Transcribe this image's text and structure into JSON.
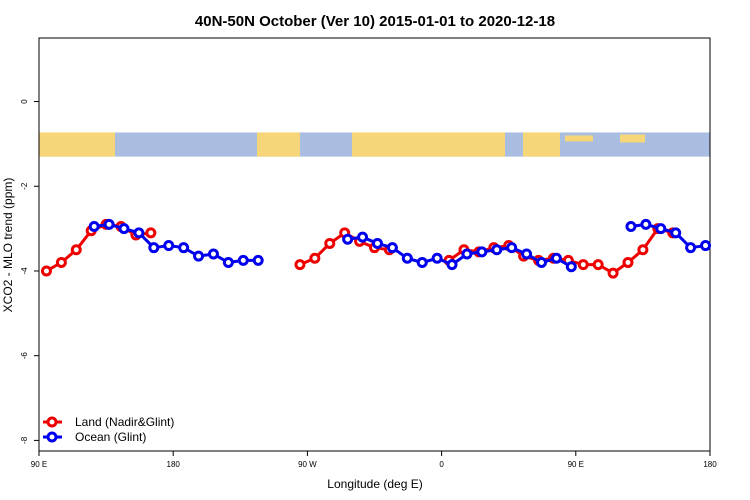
{
  "chart_data": {
    "type": "line",
    "title": "40N-50N October (Ver 10)   2015-01-01 to 2020-12-18",
    "xlabel": "Longitude (deg E)",
    "ylabel": "XCO2 - MLO trend (ppm)",
    "xlim": [
      90,
      540
    ],
    "ylim": [
      -8.25,
      1.5
    ],
    "x_ticks": [
      {
        "value": 90,
        "label": "90 E"
      },
      {
        "value": 180,
        "label": "180"
      },
      {
        "value": 270,
        "label": "90 W"
      },
      {
        "value": 360,
        "label": "0"
      },
      {
        "value": 450,
        "label": "90 E"
      },
      {
        "value": 540,
        "label": "180"
      }
    ],
    "y_ticks": [
      {
        "value": 0,
        "label": "0"
      },
      {
        "value": -2,
        "label": "-2"
      },
      {
        "value": -4,
        "label": "-4"
      },
      {
        "value": -6,
        "label": "-6"
      },
      {
        "value": -8,
        "label": "-8"
      }
    ],
    "map_strip": {
      "y_top": -0.73,
      "y_bottom": -1.3,
      "land_color": "#f7d679",
      "ocean_color": "#a8bde0"
    },
    "legend_position": "bottom-left",
    "series": [
      {
        "name": "Land (Nadir&Glint)",
        "color": "#ee0000",
        "x": [
          95,
          105,
          115,
          125,
          135,
          145,
          155,
          165,
          265,
          275,
          285,
          295,
          305,
          315,
          325,
          365,
          375,
          385,
          395,
          405,
          415,
          425,
          435,
          445,
          455,
          465,
          475,
          485,
          495,
          505,
          515
        ],
        "y": [
          -4.0,
          -3.8,
          -3.5,
          -3.05,
          -2.9,
          -2.95,
          -3.15,
          -3.1,
          -3.85,
          -3.7,
          -3.35,
          -3.1,
          -3.3,
          -3.45,
          -3.5,
          -3.75,
          -3.5,
          -3.55,
          -3.45,
          -3.4,
          -3.65,
          -3.75,
          -3.7,
          -3.75,
          -3.85,
          -3.85,
          -4.05,
          -3.8,
          -3.5,
          -3.0,
          -3.1
        ]
      },
      {
        "name": "Ocean (Glint)",
        "color": "#0000ee",
        "x": [
          127,
          137,
          147,
          157,
          167,
          177,
          187,
          197,
          207,
          217,
          227,
          237,
          297,
          307,
          317,
          327,
          337,
          347,
          357,
          367,
          377,
          387,
          397,
          407,
          417,
          427,
          437,
          447,
          487,
          497,
          507,
          517,
          527,
          537
        ],
        "y": [
          -2.95,
          -2.9,
          -3.0,
          -3.1,
          -3.45,
          -3.4,
          -3.45,
          -3.65,
          -3.6,
          -3.8,
          -3.75,
          -3.75,
          -3.25,
          -3.2,
          -3.35,
          -3.45,
          -3.7,
          -3.8,
          -3.7,
          -3.85,
          -3.6,
          -3.55,
          -3.5,
          -3.45,
          -3.6,
          -3.8,
          -3.7,
          -3.9,
          -2.95,
          -2.9,
          -3.0,
          -3.1,
          -3.45,
          -3.4
        ]
      }
    ]
  }
}
